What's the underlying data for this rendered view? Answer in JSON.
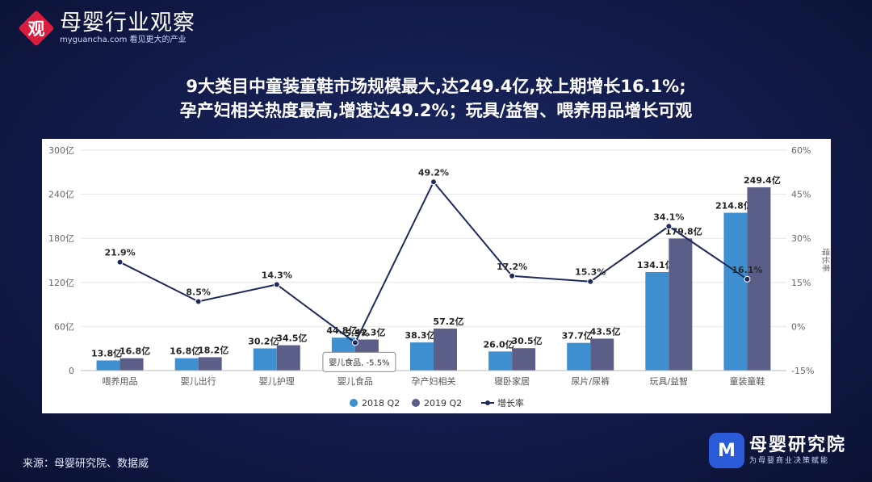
{
  "header": {
    "logo_char": "观",
    "logo_name": "母婴行业观察",
    "logo_url": "myguancha.com 看见更大的产业"
  },
  "headline": {
    "line1": "9大类目中童装童鞋市场规模最大,达249.4亿,较上期增长16.1%;",
    "line2": "孕产妇相关热度最高,增速达49.2%；玩具/益智、喂养用品增长可观"
  },
  "colors": {
    "bar2018": "#3e8fd0",
    "bar2019": "#5b5f88",
    "line": "#1f2a5c",
    "grid": "#e6e6e6",
    "axis_text": "#666666"
  },
  "chart_data": {
    "type": "bar",
    "categories": [
      "喂养用品",
      "婴儿出行",
      "婴儿护理",
      "婴儿食品",
      "孕产妇相关",
      "寝卧家居",
      "尿片/尿裤",
      "玩具/益智",
      "童装童鞋"
    ],
    "series": [
      {
        "name": "2018 Q2",
        "type": "bar",
        "values": [
          13.8,
          16.8,
          30.2,
          44.8,
          38.3,
          26.0,
          37.7,
          134.1,
          214.8
        ],
        "labels": [
          "13.8亿",
          "16.8亿",
          "30.2亿",
          "44.8亿",
          "38.3亿",
          "26.0亿",
          "37.7亿",
          "134.1亿",
          "214.8亿"
        ]
      },
      {
        "name": "2019 Q2",
        "type": "bar",
        "values": [
          16.8,
          18.2,
          34.5,
          42.3,
          57.2,
          30.5,
          43.5,
          179.8,
          249.4
        ],
        "labels": [
          "16.8亿",
          "18.2亿",
          "34.5亿",
          "42.3亿",
          "57.2亿",
          "30.5亿",
          "43.5亿",
          "179.8亿",
          "249.4亿"
        ]
      },
      {
        "name": "增长率",
        "type": "line",
        "axis": "right",
        "values": [
          21.9,
          8.5,
          14.3,
          -5.5,
          49.2,
          17.2,
          15.3,
          34.1,
          16.1
        ],
        "labels": [
          "21.9%",
          "8.5%",
          "14.3%",
          "-5.5%",
          "49.2%",
          "17.2%",
          "15.3%",
          "34.1%",
          "16.1%"
        ]
      }
    ],
    "ylim": [
      0,
      300
    ],
    "y_ticks": [
      0,
      60,
      120,
      180,
      240,
      300
    ],
    "y_tick_labels": [
      "0",
      "60亿",
      "120亿",
      "180亿",
      "240亿",
      "300亿"
    ],
    "y2lim": [
      -15,
      60
    ],
    "y2_ticks": [
      -15,
      0,
      15,
      30,
      45,
      60
    ],
    "y2_tick_labels": [
      "-15%",
      "0%",
      "15%",
      "30%",
      "45%",
      "60%"
    ],
    "y2label": "增长率",
    "legend": [
      "2018 Q2",
      "2019 Q2",
      "增长率"
    ],
    "legend_position": "bottom",
    "tooltip": "婴儿食品, -5.5%",
    "grid": true
  },
  "footer": {
    "source": "来源：母婴研究院、数据威",
    "brand_icon": "M",
    "brand_name": "母婴研究院",
    "brand_sub": "为母婴商业决策赋能"
  }
}
